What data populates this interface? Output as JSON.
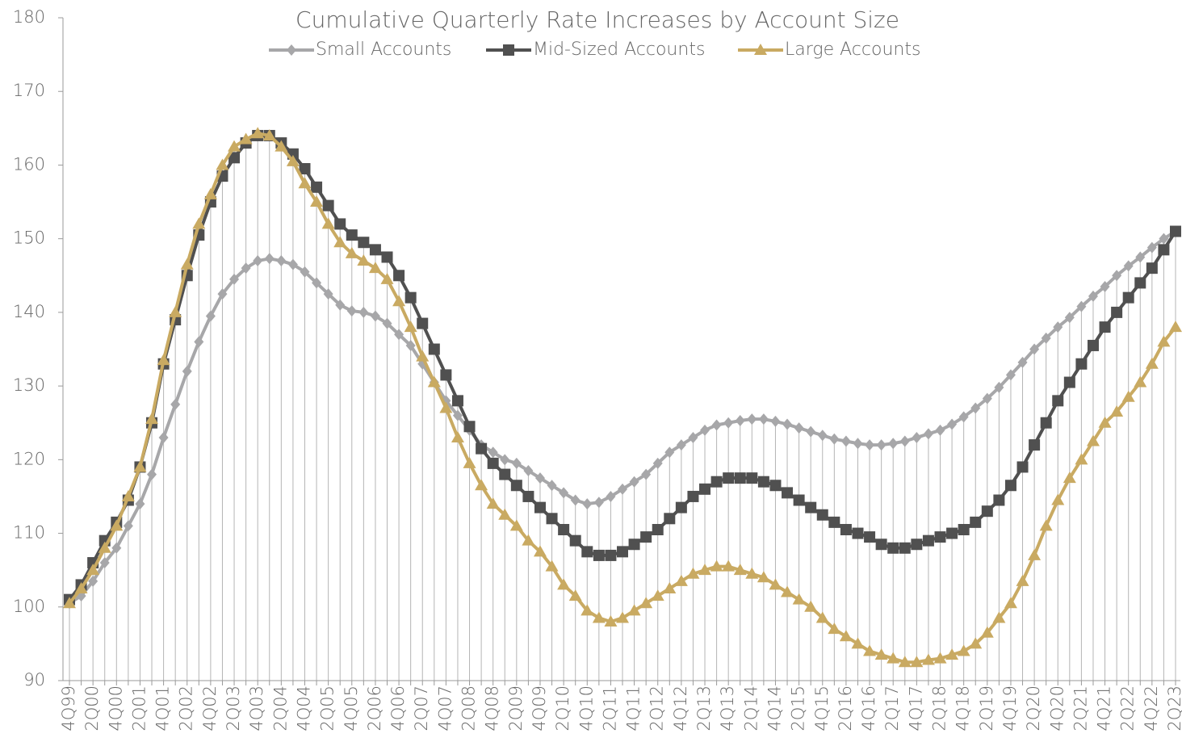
{
  "chart_data": {
    "type": "line",
    "title": "Cumulative Quarterly Rate Increases by Account Size",
    "categories": [
      "4Q99",
      null,
      "2Q00",
      null,
      "4Q00",
      null,
      "2Q01",
      null,
      "4Q01",
      null,
      "2Q02",
      null,
      "4Q02",
      null,
      "2Q03",
      null,
      "4Q03",
      null,
      "2Q04",
      null,
      "4Q04",
      null,
      "2Q05",
      null,
      "4Q05",
      null,
      "2Q06",
      null,
      "4Q06",
      null,
      "2Q07",
      null,
      "4Q07",
      null,
      "2Q08",
      null,
      "4Q08",
      null,
      "2Q09",
      null,
      "4Q09",
      null,
      "2Q10",
      null,
      "4Q10",
      null,
      "2Q11",
      null,
      "4Q11",
      null,
      "2Q12",
      null,
      "4Q12",
      null,
      "2Q13",
      null,
      "4Q13",
      null,
      "2Q14",
      null,
      "4Q14",
      null,
      "2Q15",
      null,
      "4Q15",
      null,
      "2Q16",
      null,
      "4Q16",
      null,
      "2Q17",
      null,
      "4Q17",
      null,
      "2Q18",
      null,
      "4Q18",
      null,
      "2Q19",
      null,
      "4Q19",
      null,
      "2Q20",
      null,
      "4Q20",
      null,
      "2Q21",
      null,
      "4Q21",
      null,
      "2Q22",
      null,
      "4Q22",
      null,
      "2Q23"
    ],
    "series": [
      {
        "name": "Small Accounts",
        "color": "#a7a7a9",
        "marker": "diamond",
        "values": [
          100.5,
          101.5,
          103.5,
          106,
          108,
          111,
          114,
          118,
          123,
          127.5,
          132,
          136,
          139.5,
          142.5,
          144.5,
          146,
          147,
          147.3,
          147,
          146.5,
          145.5,
          144,
          142.5,
          141,
          140.2,
          140,
          139.5,
          138.5,
          137,
          135.5,
          133,
          130.5,
          128,
          126,
          124,
          122,
          121,
          120,
          119.5,
          118.5,
          117.5,
          116.5,
          115.5,
          114.5,
          114,
          114.2,
          115,
          116,
          117,
          118,
          119.5,
          121,
          122,
          123,
          124,
          124.7,
          125,
          125.3,
          125.5,
          125.5,
          125.2,
          124.8,
          124.3,
          123.8,
          123.3,
          122.8,
          122.5,
          122.2,
          122,
          122,
          122.2,
          122.5,
          123,
          123.5,
          124,
          124.8,
          125.8,
          127,
          128.3,
          129.8,
          131.5,
          133.2,
          135,
          136.5,
          138,
          139.3,
          140.8,
          142.2,
          143.5,
          145,
          146.3,
          147.5,
          148.8,
          150,
          151
        ]
      },
      {
        "name": "Mid-Sized Accounts",
        "color": "#505050",
        "marker": "square",
        "values": [
          101,
          103,
          106,
          109,
          111.5,
          114.5,
          119,
          125,
          133,
          139,
          145,
          150.5,
          155,
          158.5,
          161,
          163,
          164,
          164,
          163,
          161.5,
          159.5,
          157,
          154.5,
          152,
          150.5,
          149.5,
          148.5,
          147.5,
          145,
          142,
          138.5,
          135,
          131.5,
          128,
          124.5,
          121.5,
          119.5,
          118,
          116.5,
          115,
          113.5,
          112,
          110.5,
          109,
          107.5,
          107,
          107,
          107.5,
          108.5,
          109.5,
          110.5,
          112,
          113.5,
          115,
          116,
          117,
          117.5,
          117.5,
          117.5,
          117,
          116.5,
          115.5,
          114.5,
          113.5,
          112.5,
          111.5,
          110.5,
          110,
          109.5,
          108.5,
          108,
          108,
          108.5,
          109,
          109.5,
          110,
          110.5,
          111.5,
          113,
          114.5,
          116.5,
          119,
          122,
          125,
          128,
          130.5,
          133,
          135.5,
          138,
          140,
          142,
          144,
          146,
          148.5,
          151
        ]
      },
      {
        "name": "Large Accounts",
        "color": "#c9aa62",
        "marker": "triangle",
        "values": [
          100.5,
          102.5,
          105,
          108,
          111,
          115,
          119,
          125.5,
          133.5,
          140,
          146.5,
          152,
          156,
          160,
          162.5,
          163.5,
          164.3,
          164,
          162.5,
          160.5,
          157.5,
          155,
          152,
          149.5,
          148,
          147,
          146,
          144.5,
          141.5,
          138,
          134,
          130.5,
          127,
          123,
          119.5,
          116.5,
          114,
          112.5,
          111,
          109,
          107.5,
          105.5,
          103,
          101.5,
          99.5,
          98.5,
          98,
          98.5,
          99.5,
          100.5,
          101.5,
          102.5,
          103.5,
          104.5,
          105,
          105.5,
          105.5,
          105,
          104.5,
          104,
          103,
          102,
          101,
          100,
          98.5,
          97,
          96,
          95,
          94,
          93.5,
          93,
          92.5,
          92.5,
          92.8,
          93,
          93.5,
          94,
          95,
          96.5,
          98.5,
          100.5,
          103.5,
          107,
          111,
          114.5,
          117.5,
          120,
          122.5,
          125,
          126.5,
          128.5,
          130.5,
          133,
          136,
          138
        ]
      }
    ],
    "ylim": [
      90,
      180
    ],
    "yticks": [
      90,
      100,
      110,
      120,
      130,
      140,
      150,
      160,
      170,
      180
    ],
    "drop_lines": true,
    "legend": "top"
  }
}
